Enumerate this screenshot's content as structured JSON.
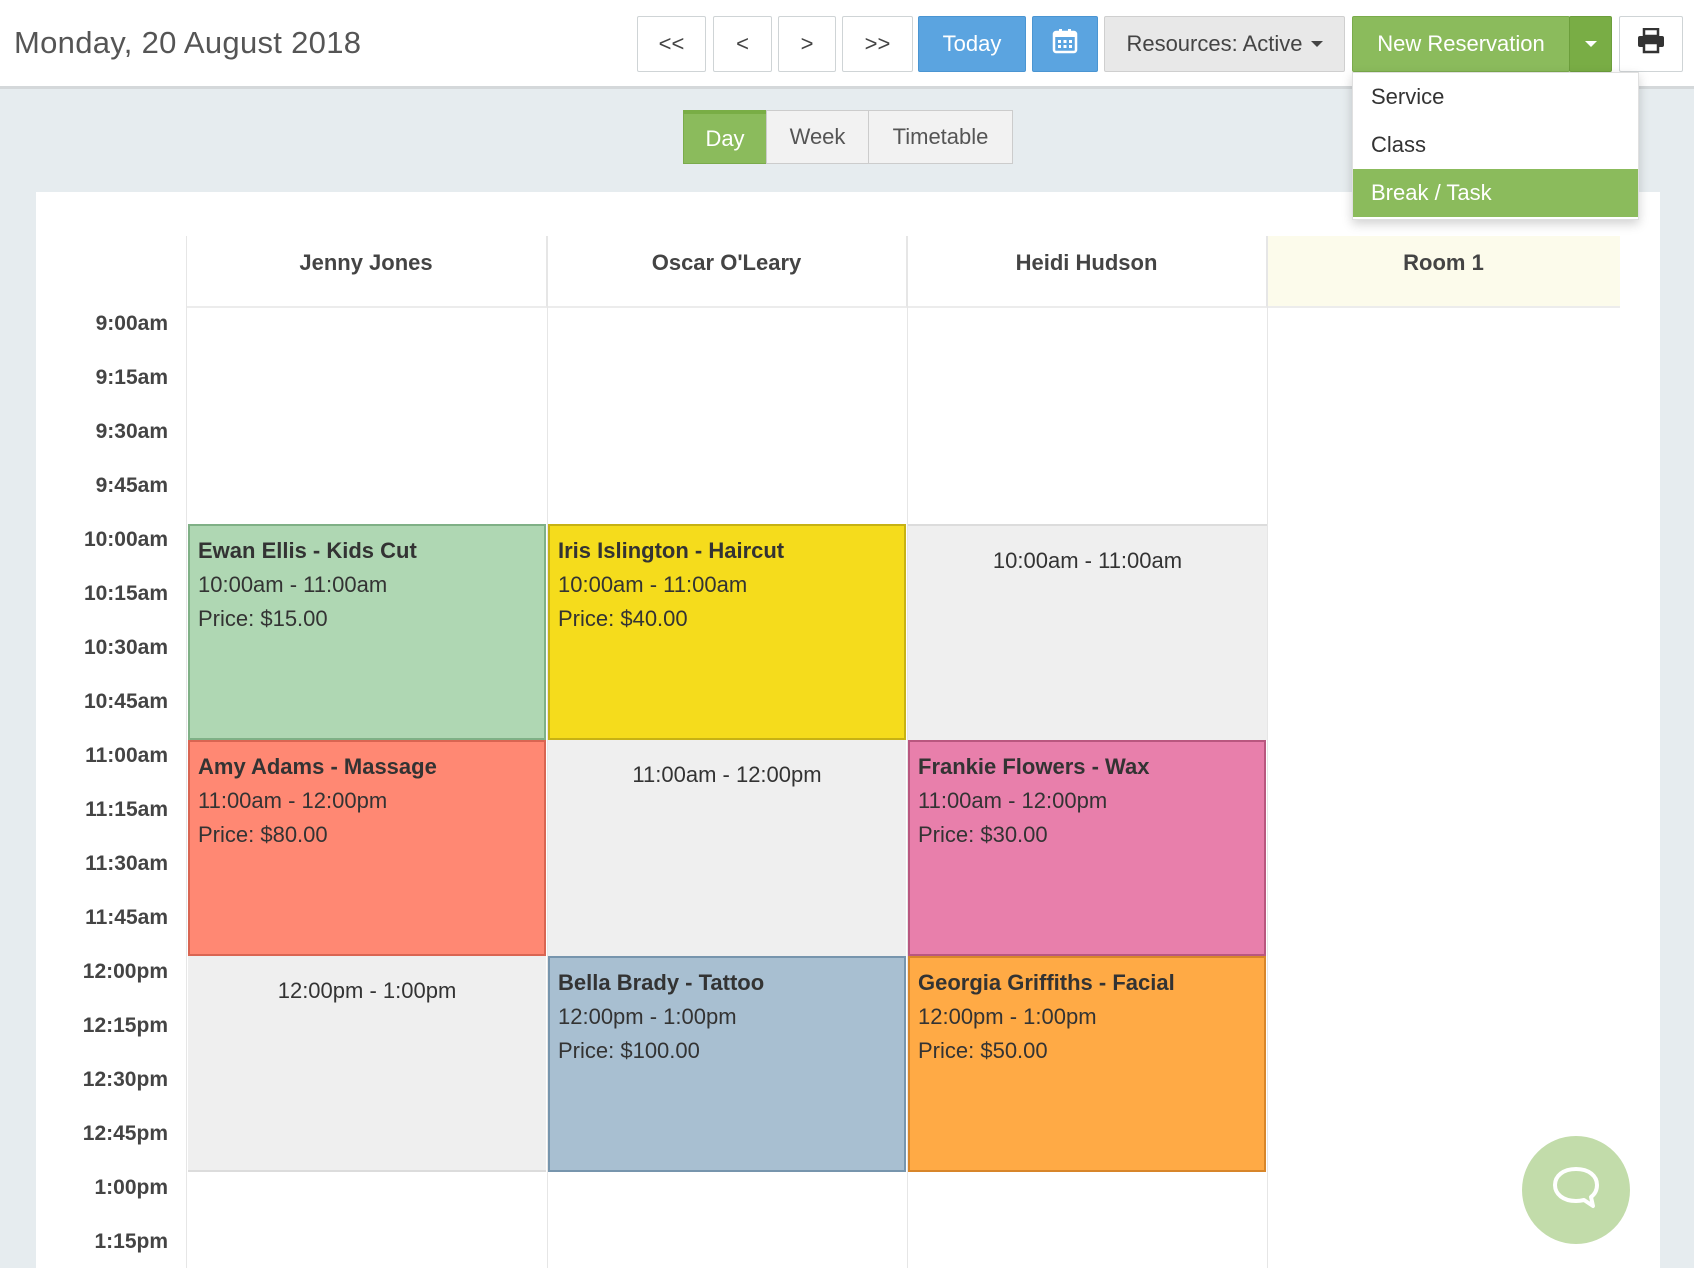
{
  "header": {
    "date": "Monday, 20 August 2018",
    "nav": {
      "first": "<<",
      "prev": "<",
      "next": ">",
      "last": ">>"
    },
    "today_label": "Today",
    "resources_label": "Resources: Active",
    "new_reservation_label": "New Reservation"
  },
  "new_reservation_menu": {
    "items": [
      "Service",
      "Class",
      "Break / Task"
    ],
    "highlighted": "Break / Task"
  },
  "view_tabs": {
    "items": [
      "Day",
      "Week",
      "Timetable"
    ],
    "active": "Day"
  },
  "columns": [
    "Jenny Jones",
    "Oscar O'Leary",
    "Heidi Hudson",
    "Room 1"
  ],
  "times": [
    "9:00am",
    "9:15am",
    "9:30am",
    "9:45am",
    "10:00am",
    "10:15am",
    "10:30am",
    "10:45am",
    "11:00am",
    "11:15am",
    "11:30am",
    "11:45am",
    "12:00pm",
    "12:15pm",
    "12:30pm",
    "12:45pm",
    "1:00pm",
    "1:15pm"
  ],
  "events": [
    {
      "title": "Ewan Ellis - Kids Cut",
      "time": "10:00am - 11:00am",
      "price": "Price: $15.00",
      "color": "#afd7b3",
      "border": "#7fb086"
    },
    {
      "title": "Iris Islington - Haircut",
      "time": "10:00am - 11:00am",
      "price": "Price: $40.00",
      "color": "#f5dc1c",
      "border": "#c7b214"
    },
    {
      "time": "10:00am - 11:00am",
      "color": "#efefef"
    },
    {
      "title": "Amy Adams - Massage",
      "time": "11:00am - 12:00pm",
      "price": "Price: $80.00",
      "color": "#ff8873",
      "border": "#d96552"
    },
    {
      "time": "11:00am - 12:00pm",
      "color": "#efefef"
    },
    {
      "title": "Frankie Flowers - Wax",
      "time": "11:00am - 12:00pm",
      "price": "Price: $30.00",
      "color": "#e87fab",
      "border": "#b9577f"
    },
    {
      "time": "12:00pm - 1:00pm",
      "color": "#efefef"
    },
    {
      "title": "Bella Brady - Tattoo",
      "time": "12:00pm - 1:00pm",
      "price": "Price: $100.00",
      "color": "#a8bfd1",
      "border": "#7795ad"
    },
    {
      "title": "Georgia Griffiths - Facial",
      "time": "12:00pm - 1:00pm",
      "price": "Price: $50.00",
      "color": "#ffaa45",
      "border": "#d8862a"
    }
  ],
  "colors": {
    "accent_green": "#8bbb5c",
    "today_blue": "#5ba4e0",
    "room_header": "#fcfbeb"
  },
  "icons": {
    "calendar": "calendar-icon",
    "print": "printer-icon",
    "chat": "chat-bubble-icon"
  }
}
